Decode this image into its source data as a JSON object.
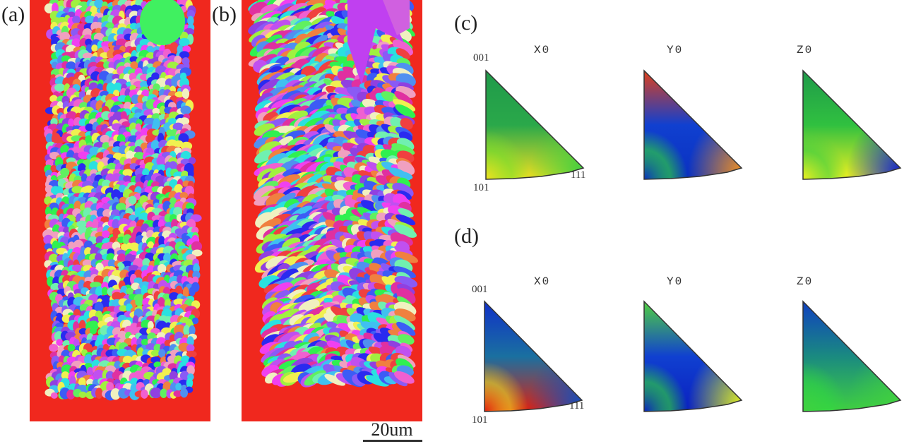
{
  "figure": {
    "panels": [
      {
        "id": "a",
        "label": "(a)",
        "type": "EBSD inverse pole figure orientation map",
        "description": "fine equiaxed grains, random orientation colors, red background"
      },
      {
        "id": "b",
        "label": "(b)",
        "type": "EBSD inverse pole figure orientation map",
        "description": "columnar/dendritic grains with chevron pattern, red background"
      },
      {
        "id": "c",
        "label": "(c)",
        "type": "inverse pole figure triangles"
      },
      {
        "id": "d",
        "label": "(d)",
        "type": "inverse pole figure triangles"
      }
    ],
    "scale_bar": {
      "label": "20um"
    },
    "ipf_rows": [
      {
        "label": "(c)",
        "poles": {
          "top": "001",
          "bottom_left": "101",
          "bottom_right": "111"
        },
        "triangles": [
          {
            "title": "X0",
            "colors": {
              "top": "#1f9a4a",
              "mid": "#2aa84a",
              "bottom_left": "#f0e020",
              "bottom_right": "#3fd040",
              "accent": "#7be02a"
            }
          },
          {
            "title": "Y0",
            "colors": {
              "top": "#e0401a",
              "mid": "#1040d0",
              "bottom_left": "#0a30c0",
              "bottom_right": "#f09020",
              "accent": "#30e030"
            }
          },
          {
            "title": "Z0",
            "colors": {
              "top": "#1f9a4a",
              "mid": "#30c040",
              "bottom_left": "#f0f020",
              "bottom_right": "#1020d0",
              "accent": "#40d040"
            }
          }
        ]
      },
      {
        "label": "(d)",
        "poles": {
          "top": "001",
          "bottom_left": "101",
          "bottom_right": "111"
        },
        "triangles": [
          {
            "title": "X0",
            "colors": {
              "top": "#1030c8",
              "mid": "#1a70a0",
              "bottom_left": "#e02010",
              "bottom_right": "#1050c0",
              "accent": "#f0e020"
            }
          },
          {
            "title": "Y0",
            "colors": {
              "top": "#50d040",
              "mid": "#1040d0",
              "bottom_left": "#0a20c0",
              "bottom_right": "#e0f020",
              "accent": "#30e030"
            }
          },
          {
            "title": "Z0",
            "colors": {
              "top": "#1040c0",
              "mid": "#1a8a80",
              "bottom_left": "#40d040",
              "bottom_right": "#40d040",
              "accent": "#30d840"
            }
          }
        ]
      }
    ],
    "colors": {
      "map_background": "#f0281e",
      "text": "#222222"
    }
  }
}
